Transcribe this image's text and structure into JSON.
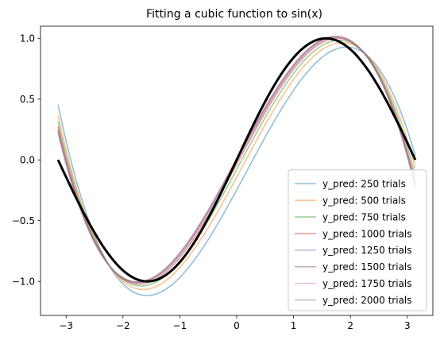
{
  "chart_data": {
    "type": "line",
    "title": "Fitting a cubic function to sin(x)",
    "xlabel": "",
    "ylabel": "",
    "xlim": [
      -3.45,
      3.45
    ],
    "ylim": [
      -1.28,
      1.1
    ],
    "x_ticks": [
      -3,
      -2,
      -1,
      0,
      1,
      2,
      3
    ],
    "x_tick_labels": [
      "−3",
      "−2",
      "−1",
      "0",
      "1",
      "2",
      "3"
    ],
    "y_ticks": [
      -1.0,
      -0.5,
      0.0,
      0.5,
      1.0
    ],
    "y_tick_labels": [
      "−1.0",
      "−0.5",
      "0.0",
      "0.5",
      "1.0"
    ],
    "grid": false,
    "legend_position": "lower-right",
    "x_range": [
      -3.14159,
      3.14159
    ],
    "series": [
      {
        "name": "y_pred: 250 trials",
        "color": "#1f77b4",
        "opacity": 0.5,
        "points": [
          [
            -3.14,
            0.45
          ],
          [
            -2.5,
            -0.55
          ],
          [
            -2.0,
            -1.05
          ],
          [
            -1.57,
            -1.19
          ],
          [
            -1.0,
            -1.02
          ],
          [
            -0.5,
            -0.69
          ],
          [
            0.0,
            -0.18
          ],
          [
            0.5,
            0.31
          ],
          [
            1.0,
            0.64
          ],
          [
            1.5,
            0.8
          ],
          [
            2.0,
            0.83
          ],
          [
            2.5,
            0.67
          ],
          [
            3.14,
            0.12
          ]
        ]
      },
      {
        "name": "y_pred: 500 trials",
        "color": "#ff7f0e",
        "opacity": 0.5,
        "points": [
          [
            -3.14,
            0.37
          ],
          [
            -2.5,
            -0.61
          ],
          [
            -2.0,
            -1.0
          ],
          [
            -1.57,
            -1.12
          ],
          [
            -1.0,
            -0.94
          ],
          [
            -0.5,
            -0.59
          ],
          [
            0.0,
            -0.1
          ],
          [
            0.5,
            0.4
          ],
          [
            1.0,
            0.74
          ],
          [
            1.5,
            0.88
          ],
          [
            2.0,
            0.86
          ],
          [
            2.5,
            0.64
          ],
          [
            3.14,
            0.02
          ]
        ]
      },
      {
        "name": "y_pred: 750 trials",
        "color": "#2ca02c",
        "opacity": 0.5,
        "points": [
          [
            -3.14,
            0.32
          ],
          [
            -2.5,
            -0.63
          ],
          [
            -2.0,
            -0.98
          ],
          [
            -1.57,
            -1.08
          ],
          [
            -1.0,
            -0.89
          ],
          [
            -0.5,
            -0.52
          ],
          [
            0.0,
            -0.05
          ],
          [
            0.5,
            0.45
          ],
          [
            1.0,
            0.79
          ],
          [
            1.5,
            0.92
          ],
          [
            2.0,
            0.88
          ],
          [
            2.5,
            0.62
          ],
          [
            3.14,
            -0.05
          ]
        ]
      },
      {
        "name": "y_pred: 1000 trials",
        "color": "#d62728",
        "opacity": 0.5,
        "points": [
          [
            -3.14,
            0.28
          ],
          [
            -2.5,
            -0.65
          ],
          [
            -2.0,
            -0.97
          ],
          [
            -1.57,
            -1.05
          ],
          [
            -1.0,
            -0.86
          ],
          [
            -0.5,
            -0.48
          ],
          [
            0.0,
            -0.02
          ],
          [
            0.5,
            0.49
          ],
          [
            1.0,
            0.82
          ],
          [
            1.5,
            0.95
          ],
          [
            2.0,
            0.9
          ],
          [
            2.5,
            0.6
          ],
          [
            3.14,
            -0.1
          ]
        ]
      },
      {
        "name": "y_pred: 1250 trials",
        "color": "#9467bd",
        "opacity": 0.5,
        "points": [
          [
            -3.14,
            0.26
          ],
          [
            -2.5,
            -0.66
          ],
          [
            -2.0,
            -0.97
          ],
          [
            -1.57,
            -1.04
          ],
          [
            -1.0,
            -0.84
          ],
          [
            -0.5,
            -0.45
          ],
          [
            0.0,
            0.0
          ],
          [
            0.5,
            0.51
          ],
          [
            1.0,
            0.84
          ],
          [
            1.5,
            0.96
          ],
          [
            2.0,
            0.9
          ],
          [
            2.5,
            0.59
          ],
          [
            3.14,
            -0.12
          ]
        ]
      },
      {
        "name": "y_pred: 1500 trials",
        "color": "#8c564b",
        "opacity": 0.5,
        "points": [
          [
            -3.14,
            0.25
          ],
          [
            -2.5,
            -0.66
          ],
          [
            -2.0,
            -0.97
          ],
          [
            -1.57,
            -1.03
          ],
          [
            -1.0,
            -0.83
          ],
          [
            -0.5,
            -0.44
          ],
          [
            0.0,
            0.01
          ],
          [
            0.5,
            0.52
          ],
          [
            1.0,
            0.85
          ],
          [
            1.5,
            0.97
          ],
          [
            2.0,
            0.91
          ],
          [
            2.5,
            0.59
          ],
          [
            3.14,
            -0.13
          ]
        ]
      },
      {
        "name": "y_pred: 1750 trials",
        "color": "#e377c2",
        "opacity": 0.5,
        "points": [
          [
            -3.14,
            0.24
          ],
          [
            -2.5,
            -0.67
          ],
          [
            -2.0,
            -0.97
          ],
          [
            -1.57,
            -1.02
          ],
          [
            -1.0,
            -0.82
          ],
          [
            -0.5,
            -0.43
          ],
          [
            0.0,
            0.02
          ],
          [
            0.5,
            0.53
          ],
          [
            1.0,
            0.86
          ],
          [
            1.5,
            0.97
          ],
          [
            2.0,
            0.91
          ],
          [
            2.5,
            0.58
          ],
          [
            3.14,
            -0.14
          ]
        ]
      },
      {
        "name": "y_pred: 2000 trials",
        "color": "#7f7f7f",
        "opacity": 0.5,
        "points": [
          [
            -3.14,
            0.23
          ],
          [
            -2.5,
            -0.67
          ],
          [
            -2.0,
            -0.97
          ],
          [
            -1.57,
            -1.02
          ],
          [
            -1.0,
            -0.82
          ],
          [
            -0.5,
            -0.42
          ],
          [
            0.0,
            0.02
          ],
          [
            0.5,
            0.53
          ],
          [
            1.0,
            0.86
          ],
          [
            1.5,
            0.97
          ],
          [
            2.0,
            0.91
          ],
          [
            2.5,
            0.58
          ],
          [
            3.14,
            -0.15
          ]
        ]
      }
    ],
    "reference_line": {
      "function": "sin(x)",
      "color": "#000000"
    }
  }
}
